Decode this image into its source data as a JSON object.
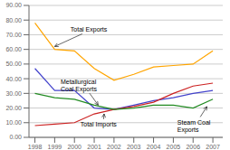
{
  "chart_data": {
    "type": "line",
    "x": [
      1998,
      1999,
      2000,
      2001,
      2002,
      2003,
      2004,
      2005,
      2006,
      2007
    ],
    "xlim": [
      1997.7,
      2007.5
    ],
    "xticks": [
      1998,
      1999,
      2000,
      2001,
      2002,
      2003,
      2004,
      2005,
      2006,
      2007
    ],
    "ylim": [
      0,
      90
    ],
    "yticks": [
      {
        "value": 0,
        "label": "0.00"
      },
      {
        "value": 10,
        "label": "10.00"
      },
      {
        "value": 20,
        "label": "20.00"
      },
      {
        "value": 30,
        "label": "30.00"
      },
      {
        "value": 40,
        "label": "40.00"
      },
      {
        "value": 50,
        "label": "50.00"
      },
      {
        "value": 60,
        "label": "60.00"
      },
      {
        "value": 70,
        "label": "70.00"
      },
      {
        "value": 80,
        "label": "80.00"
      },
      {
        "value": 90,
        "label": "90.00"
      }
    ],
    "grid": "y",
    "series": [
      {
        "color": "#FFA500",
        "values": [
          78,
          60,
          59,
          47,
          39,
          43,
          48,
          49,
          50,
          59
        ]
      },
      {
        "color": "#4444CC",
        "values": [
          47,
          32,
          32,
          20,
          19,
          22,
          25,
          27,
          30,
          32
        ]
      },
      {
        "color": "#CC2222",
        "values": [
          8,
          9,
          10,
          16,
          19,
          21,
          24,
          30,
          35,
          37
        ]
      },
      {
        "color": "#228B22",
        "values": [
          30,
          27,
          26,
          22,
          19,
          20,
          22,
          22,
          20,
          26
        ]
      }
    ],
    "annotations": [
      {
        "text": "Total Exports",
        "xy": [
          1999,
          62
        ],
        "xytext": [
          1999.8,
          74
        ]
      },
      {
        "text": "Metallurgical\nCoal Exports",
        "xy": [
          2001.2,
          22
        ],
        "xytext": [
          1999.3,
          36
        ]
      },
      {
        "text": "Total Imports",
        "xy": [
          2001.5,
          16
        ],
        "xytext": [
          2000.3,
          9
        ]
      },
      {
        "text": "Steam Coal\nExports",
        "xy": [
          2006.7,
          21
        ],
        "xytext": [
          2005.2,
          8
        ]
      }
    ]
  }
}
